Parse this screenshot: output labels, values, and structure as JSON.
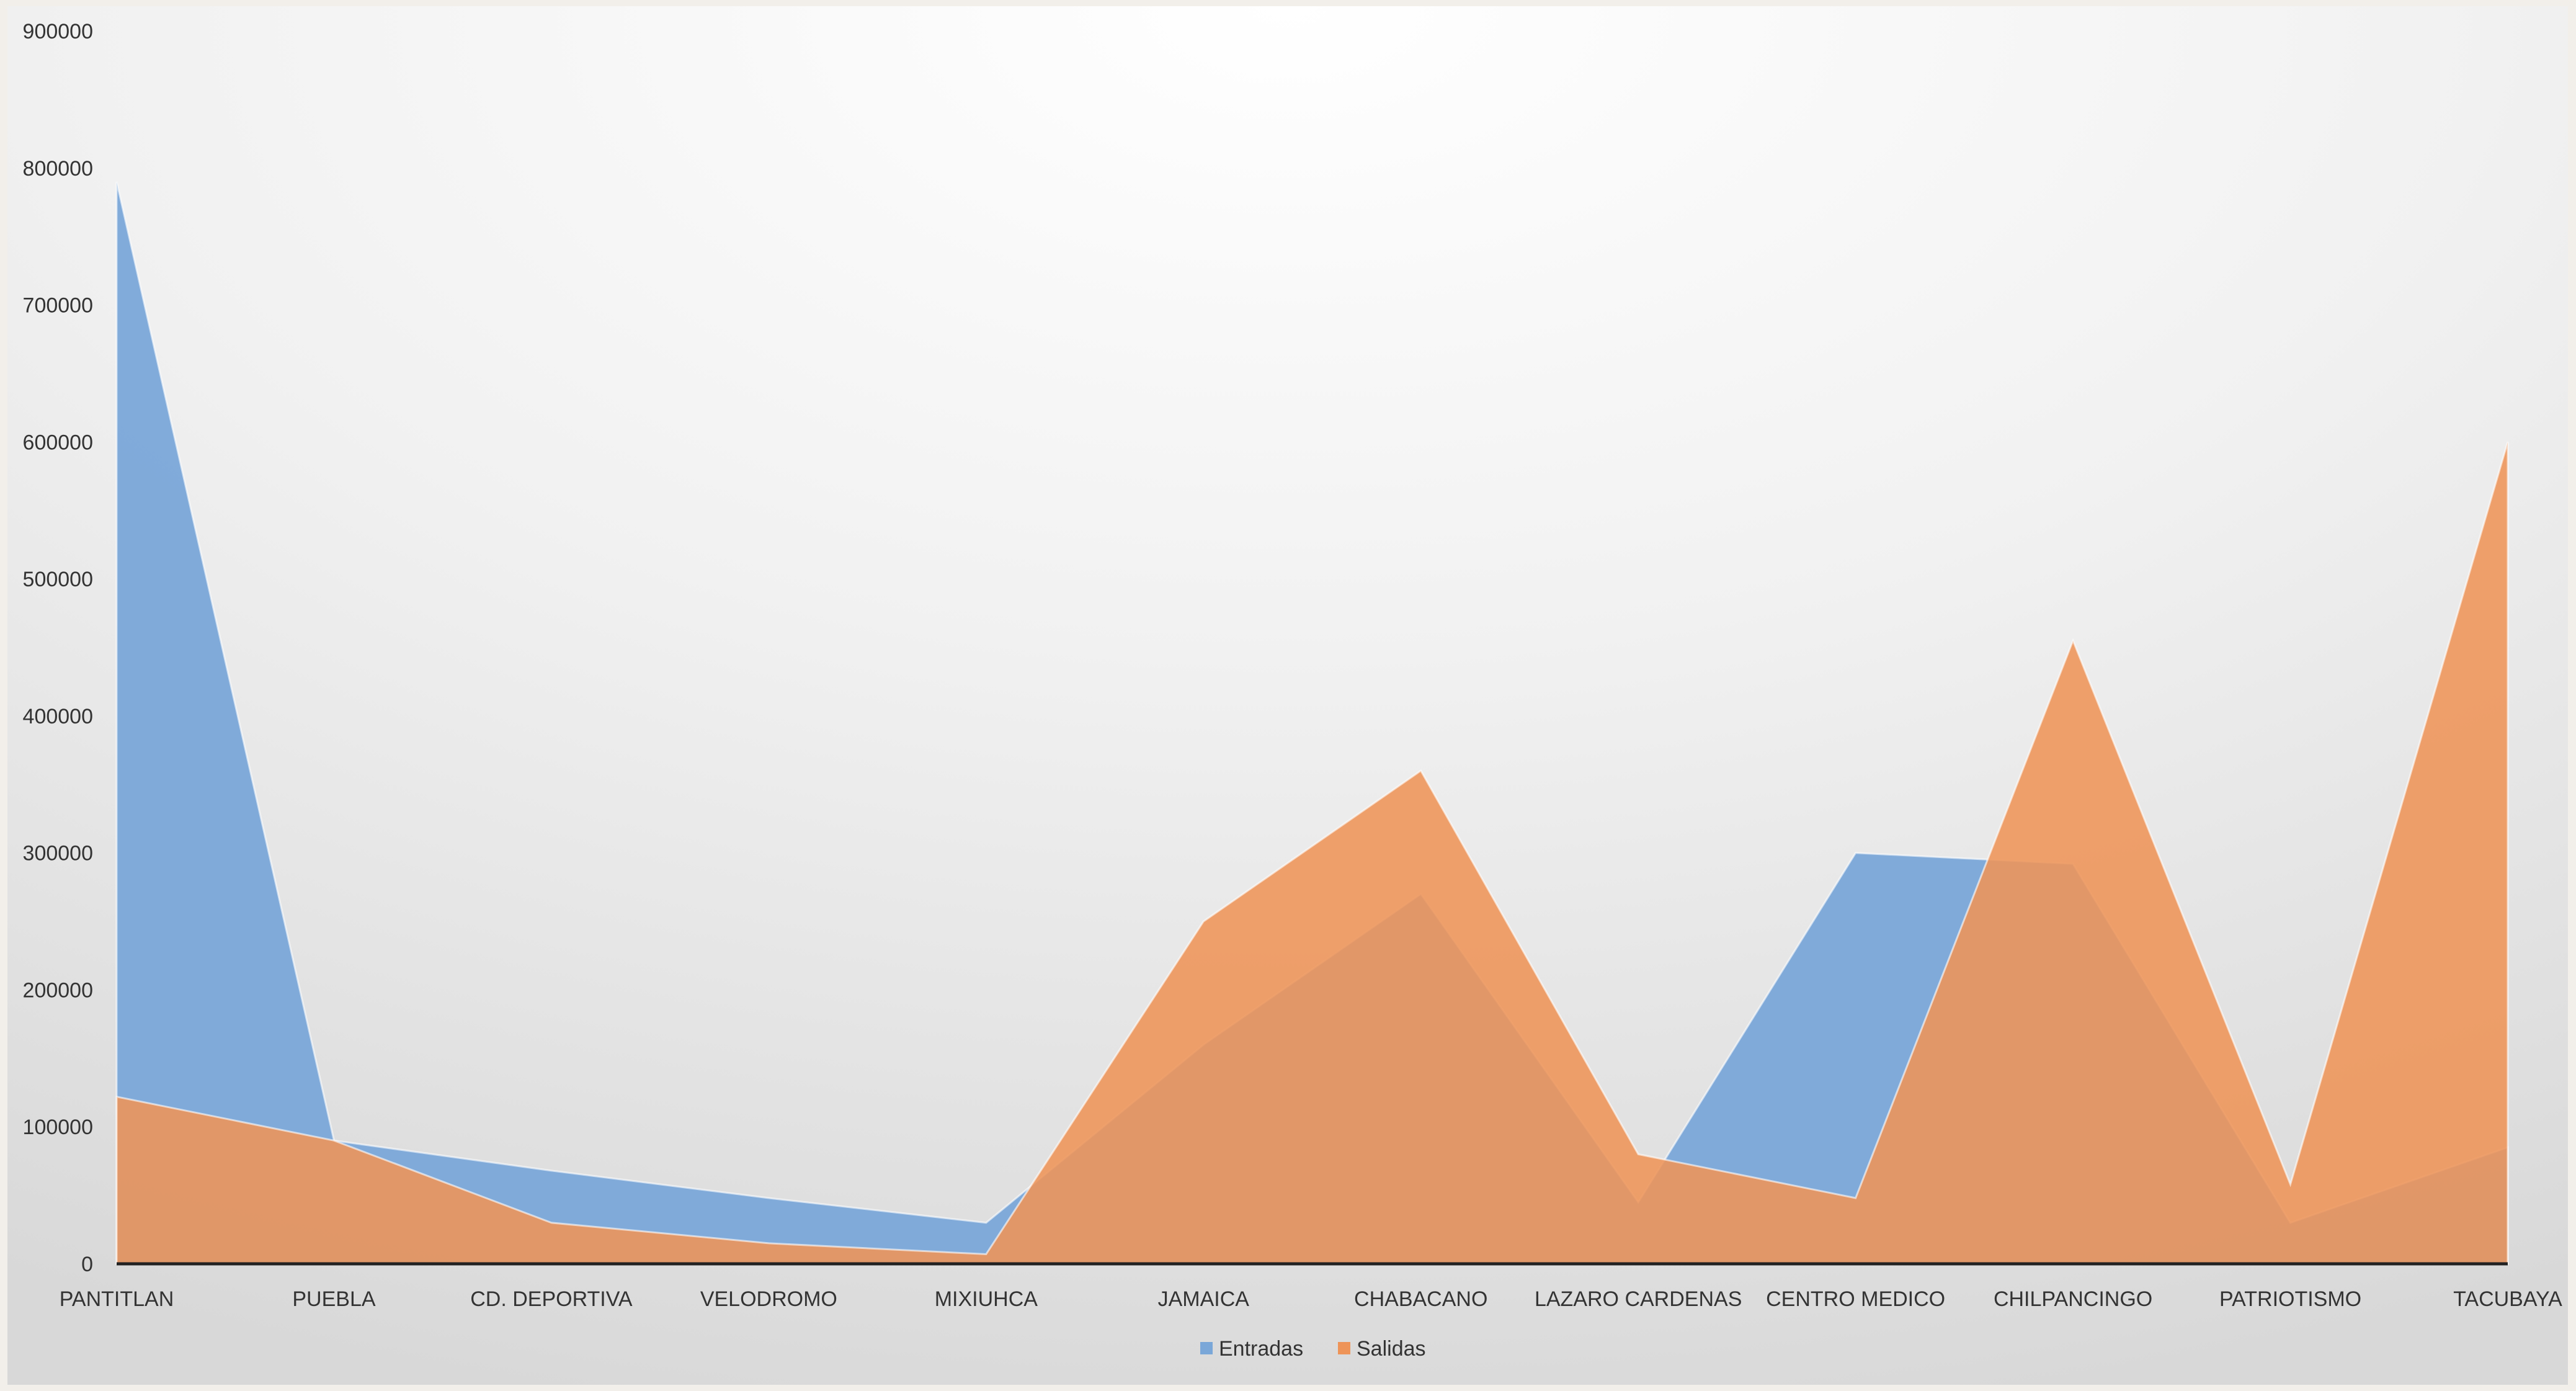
{
  "chart_data": {
    "type": "area",
    "title": "",
    "xlabel": "",
    "ylabel": "",
    "ylim": [
      0,
      900000
    ],
    "yticks": [
      0,
      100000,
      200000,
      300000,
      400000,
      500000,
      600000,
      700000,
      800000,
      900000
    ],
    "grid": false,
    "legend": "bottom",
    "categories": [
      "PANTITLAN",
      "PUEBLA",
      "CD. DEPORTIVA",
      "VELODROMO",
      "MIXIUHCA",
      "JAMAICA",
      "CHABACANO",
      "LAZARO CARDENAS",
      "CENTRO MEDICO",
      "CHILPANCINGO",
      "PATRIOTISMO",
      "TACUBAYA"
    ],
    "series": [
      {
        "name": "Entradas",
        "color": "#7aa7d8",
        "values": [
          790000,
          90000,
          68000,
          48000,
          30000,
          160000,
          270000,
          45000,
          300000,
          292000,
          30000,
          85000
        ]
      },
      {
        "name": "Salidas",
        "color": "#ee9458",
        "values": [
          122000,
          90000,
          30000,
          15000,
          7000,
          250000,
          360000,
          80000,
          48000,
          455000,
          58000,
          600000
        ]
      }
    ]
  },
  "colors": {
    "background_top": "#ffffff",
    "background_edge": "#dcdcdc",
    "page": "#f2efea",
    "axis": "#222222"
  }
}
